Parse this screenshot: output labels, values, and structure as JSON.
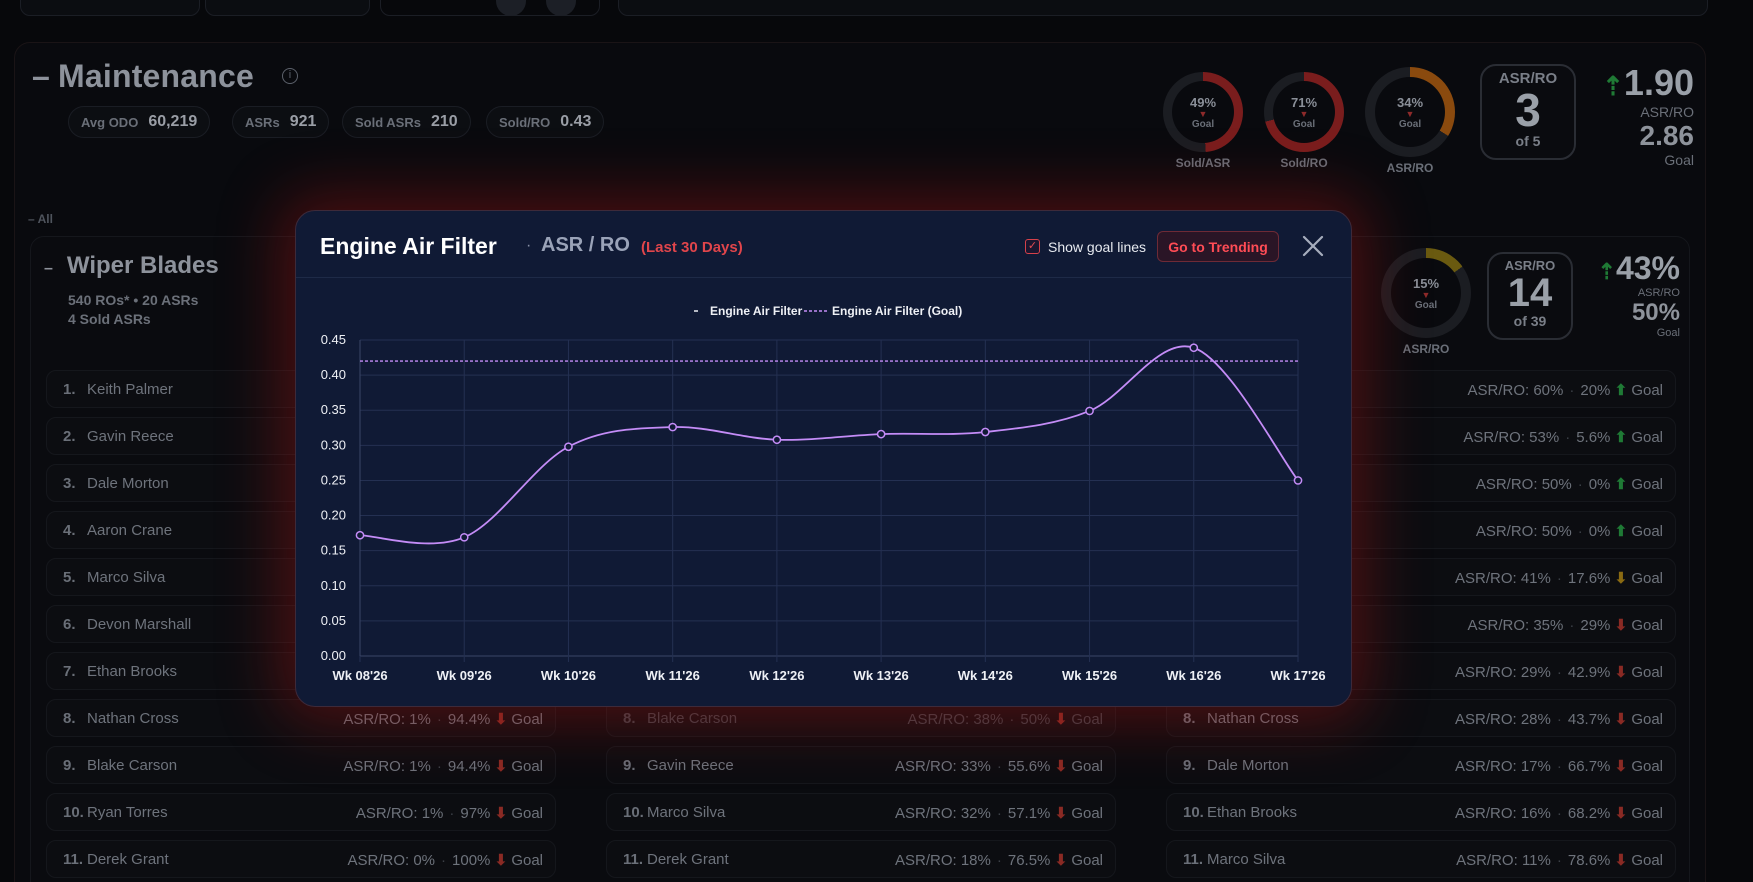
{
  "maintenance": {
    "title": "Maintenance",
    "dash": "–",
    "info": "i",
    "stats": [
      {
        "label": "Avg ODO",
        "value": "60,219"
      },
      {
        "label": "ASRs",
        "value": "921"
      },
      {
        "label": "Sold ASRs",
        "value": "210"
      },
      {
        "label": "Sold/RO",
        "value": "0.43"
      }
    ],
    "gauges": [
      {
        "pct": "49%",
        "goal": "Goal",
        "caption": "Sold/ASR",
        "fill": 0.49,
        "color": "#7a1d1d"
      },
      {
        "pct": "71%",
        "goal": "Goal",
        "caption": "Sold/RO",
        "fill": 0.71,
        "color": "#7a1d1d"
      },
      {
        "pct": "34%",
        "goal": "Goal",
        "caption": "ASR/RO",
        "fill": 0.34,
        "color": "#8a4a0e"
      }
    ],
    "rank": {
      "title": "ASR/RO",
      "value": "3",
      "of": "of 5"
    },
    "metric": {
      "value": "1.90",
      "label": "ASR/RO",
      "goal_value": "2.86",
      "goal_label": "Goal"
    }
  },
  "all_label": "– All",
  "wiper": {
    "title": "Wiper Blades",
    "dash": "–",
    "meta1": "540 ROs* • 20 ASRs",
    "meta2": "4 Sold ASRs",
    "gauge": {
      "pct": "15%",
      "goal": "Goal",
      "caption": "ASR/RO",
      "fill": 0.15,
      "color": "#6a5a10"
    },
    "rank": {
      "title": "ASR/RO",
      "value": "14",
      "of": "of 39"
    },
    "metric": {
      "value": "43%",
      "label": "ASR/RO",
      "goal_value": "50%",
      "goal_label": "Goal"
    }
  },
  "left_rows": [
    {
      "n": "1.",
      "name": "Keith Palmer"
    },
    {
      "n": "2.",
      "name": "Gavin Reece"
    },
    {
      "n": "3.",
      "name": "Dale Morton"
    },
    {
      "n": "4.",
      "name": "Aaron Crane"
    },
    {
      "n": "5.",
      "name": "Marco Silva"
    },
    {
      "n": "6.",
      "name": "Devon Marshall"
    },
    {
      "n": "7.",
      "name": "Ethan Brooks"
    },
    {
      "n": "8.",
      "name": "Nathan Cross",
      "asr": "ASR/RO: 1%",
      "pct": "94.4%",
      "dir": "down",
      "goal": "Goal"
    },
    {
      "n": "9.",
      "name": "Blake Carson",
      "asr": "ASR/RO: 1%",
      "pct": "94.4%",
      "dir": "down",
      "goal": "Goal"
    },
    {
      "n": "10.",
      "name": "Ryan Torres",
      "asr": "ASR/RO: 1%",
      "pct": "97%",
      "dir": "down",
      "goal": "Goal"
    },
    {
      "n": "11.",
      "name": "Derek Grant",
      "asr": "ASR/RO: 0%",
      "pct": "100%",
      "dir": "down",
      "goal": "Goal"
    }
  ],
  "mid_rows": [
    {
      "n": "8.",
      "name": "Blake Carson",
      "asr": "ASR/RO: 38%",
      "pct": "50%",
      "dir": "down",
      "goal": "Goal"
    },
    {
      "n": "9.",
      "name": "Gavin Reece",
      "asr": "ASR/RO: 33%",
      "pct": "55.6%",
      "dir": "down",
      "goal": "Goal"
    },
    {
      "n": "10.",
      "name": "Marco Silva",
      "asr": "ASR/RO: 32%",
      "pct": "57.1%",
      "dir": "down",
      "goal": "Goal"
    },
    {
      "n": "11.",
      "name": "Derek Grant",
      "asr": "ASR/RO: 18%",
      "pct": "76.5%",
      "dir": "down",
      "goal": "Goal"
    }
  ],
  "right_rows": [
    {
      "asr": "ASR/RO: 60%",
      "pct": "20%",
      "dir": "up",
      "goal": "Goal"
    },
    {
      "asr": "ASR/RO: 53%",
      "pct": "5.6%",
      "dir": "up",
      "goal": "Goal"
    },
    {
      "asr": "ASR/RO: 50%",
      "pct": "0%",
      "dir": "up",
      "goal": "Goal"
    },
    {
      "asr": "ASR/RO: 50%",
      "pct": "0%",
      "dir": "up",
      "goal": "Goal"
    },
    {
      "asr": "ASR/RO: 41%",
      "pct": "17.6%",
      "dir": "down-amber",
      "goal": "Goal"
    },
    {
      "asr": "ASR/RO: 35%",
      "pct": "29%",
      "dir": "down",
      "goal": "Goal"
    },
    {
      "asr": "ASR/RO: 29%",
      "pct": "42.9%",
      "dir": "down",
      "goal": "Goal"
    },
    {
      "n": "8.",
      "name": "Nathan Cross",
      "asr": "ASR/RO: 28%",
      "pct": "43.7%",
      "dir": "down",
      "goal": "Goal"
    },
    {
      "n": "9.",
      "name": "Dale Morton",
      "asr": "ASR/RO: 17%",
      "pct": "66.7%",
      "dir": "down",
      "goal": "Goal"
    },
    {
      "n": "10.",
      "name": "Ethan Brooks",
      "asr": "ASR/RO: 16%",
      "pct": "68.2%",
      "dir": "down",
      "goal": "Goal"
    },
    {
      "n": "11.",
      "name": "Marco Silva",
      "asr": "ASR/RO: 11%",
      "pct": "78.6%",
      "dir": "down",
      "goal": "Goal"
    }
  ],
  "modal": {
    "title": "Engine Air Filter",
    "separator": "·",
    "subtitle": "ASR / RO",
    "range": "(Last 30 Days)",
    "show_goal_label": "Show goal lines",
    "show_goal_checked": true,
    "trend_button": "Go to Trending",
    "close_icon": "close-icon"
  },
  "chart_data": {
    "type": "line",
    "title": "",
    "xlabel": "",
    "ylabel": "",
    "x": [
      "Wk 08'26",
      "Wk 09'26",
      "Wk 10'26",
      "Wk 11'26",
      "Wk 12'26",
      "Wk 13'26",
      "Wk 14'26",
      "Wk 15'26",
      "Wk 16'26",
      "Wk 17'26"
    ],
    "ylim": [
      0,
      0.45
    ],
    "yticks": [
      "0.00",
      "0.05",
      "0.10",
      "0.15",
      "0.20",
      "0.25",
      "0.30",
      "0.35",
      "0.40",
      "0.45"
    ],
    "grid": true,
    "legend_position": "top-center",
    "series": [
      {
        "name": "Engine Air Filter",
        "color": "#c48cf7",
        "style": "solid",
        "values": [
          0.172,
          0.169,
          0.298,
          0.326,
          0.308,
          0.316,
          0.319,
          0.349,
          0.439,
          0.25
        ]
      },
      {
        "name": "Engine Air Filter (Goal)",
        "color": "#c48cf7",
        "style": "dashed",
        "values": [
          0.42,
          0.42,
          0.42,
          0.42,
          0.42,
          0.42,
          0.42,
          0.42,
          0.42,
          0.42
        ]
      }
    ]
  }
}
